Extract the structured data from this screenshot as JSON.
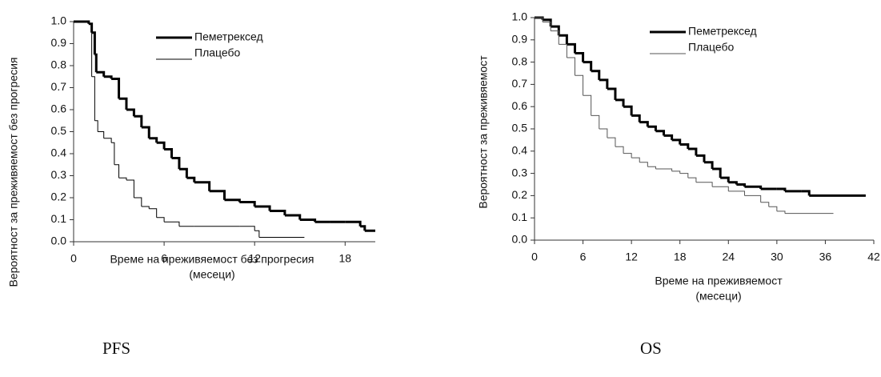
{
  "chart_data": [
    {
      "type": "step",
      "caption": "PFS",
      "ylabel": "Вероятност за преживяемост без прогресия",
      "xlabel": [
        "Време на преживяемост без прогресия",
        "(месеци)"
      ],
      "xlim": [
        0,
        20
      ],
      "xticks": [
        0,
        6,
        12,
        18
      ],
      "ylim": [
        0,
        1
      ],
      "yticks": [
        {
          "value": 0,
          "label": "0.0"
        },
        0.1,
        0.2,
        0.3,
        0.4,
        0.5,
        0.6,
        0.7,
        0.8,
        0.9,
        {
          "value": 1,
          "label": "1.0"
        }
      ],
      "series": [
        {
          "name": "Пеметрексед",
          "color": "#000",
          "width": 3,
          "x": [
            0,
            1,
            1.2,
            1.4,
            1.5,
            2,
            2.5,
            3,
            3.5,
            4,
            4.5,
            5,
            5.5,
            6,
            6.5,
            7,
            7.5,
            8,
            9,
            10,
            11,
            12,
            13,
            14,
            15,
            16,
            17,
            18,
            19,
            19.3,
            20
          ],
          "values": [
            1,
            0.99,
            0.95,
            0.85,
            0.77,
            0.75,
            0.74,
            0.65,
            0.6,
            0.57,
            0.52,
            0.47,
            0.45,
            0.42,
            0.38,
            0.33,
            0.29,
            0.27,
            0.23,
            0.19,
            0.18,
            0.16,
            0.14,
            0.12,
            0.1,
            0.09,
            0.09,
            0.09,
            0.07,
            0.05,
            0.05
          ]
        },
        {
          "name": "Плацебо",
          "color": "#000",
          "width": 1,
          "x": [
            0,
            1,
            1.2,
            1.4,
            1.6,
            2,
            2.5,
            2.7,
            3,
            3.5,
            4,
            4.5,
            5,
            5.5,
            6,
            7,
            8,
            11,
            12,
            12.3,
            15.3
          ],
          "values": [
            1,
            0.99,
            0.75,
            0.55,
            0.5,
            0.47,
            0.45,
            0.35,
            0.29,
            0.28,
            0.2,
            0.16,
            0.15,
            0.11,
            0.09,
            0.07,
            0.07,
            0.07,
            0.05,
            0.02,
            0.02
          ]
        }
      ]
    },
    {
      "type": "step",
      "caption": "OS",
      "ylabel": "Вероятност за преживяемост",
      "xlabel": [
        "Време на преживяемост",
        "(месеци)"
      ],
      "xlim": [
        0,
        42
      ],
      "xticks": [
        0,
        6,
        12,
        18,
        24,
        30,
        36,
        42
      ],
      "ylim": [
        0,
        1
      ],
      "yticks": [
        {
          "value": 0,
          "label": "0.0"
        },
        0.1,
        0.2,
        0.3,
        0.4,
        0.5,
        0.6,
        0.7,
        0.8,
        0.9,
        {
          "value": 1,
          "label": "1.0"
        }
      ],
      "series": [
        {
          "name": "Пеметрексед",
          "color": "#000",
          "width": 3,
          "x": [
            0,
            1,
            2,
            3,
            4,
            5,
            6,
            7,
            8,
            9,
            10,
            11,
            12,
            13,
            14,
            15,
            16,
            17,
            18,
            19,
            20,
            21,
            22,
            23,
            24,
            25,
            26,
            28,
            30,
            31,
            33,
            34,
            41
          ],
          "values": [
            1,
            0.99,
            0.96,
            0.92,
            0.88,
            0.84,
            0.8,
            0.76,
            0.72,
            0.68,
            0.63,
            0.6,
            0.56,
            0.53,
            0.51,
            0.49,
            0.47,
            0.45,
            0.43,
            0.41,
            0.38,
            0.35,
            0.32,
            0.28,
            0.26,
            0.25,
            0.24,
            0.23,
            0.23,
            0.22,
            0.22,
            0.2,
            0.2
          ]
        },
        {
          "name": "Плацебо",
          "color": "#555",
          "width": 1,
          "x": [
            0,
            1,
            2,
            3,
            4,
            5,
            6,
            7,
            8,
            9,
            10,
            11,
            12,
            13,
            14,
            15,
            17,
            18,
            19,
            20,
            22,
            24,
            26,
            28,
            29,
            30,
            31,
            37
          ],
          "values": [
            1,
            0.98,
            0.94,
            0.88,
            0.82,
            0.74,
            0.65,
            0.56,
            0.5,
            0.46,
            0.42,
            0.39,
            0.37,
            0.35,
            0.33,
            0.32,
            0.31,
            0.3,
            0.28,
            0.26,
            0.24,
            0.22,
            0.2,
            0.17,
            0.15,
            0.13,
            0.12,
            0.12
          ]
        }
      ]
    }
  ]
}
